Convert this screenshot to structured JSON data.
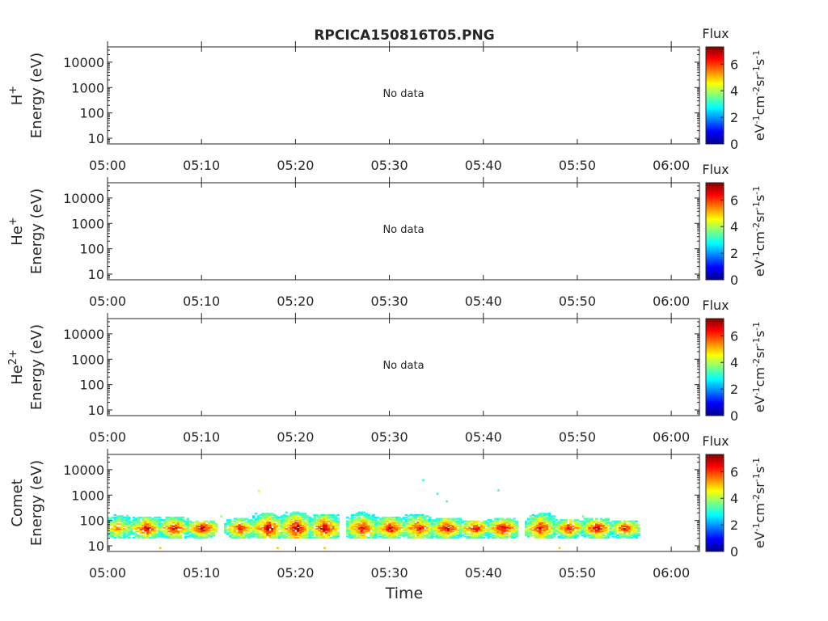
{
  "figure": {
    "title": "RPCICA150816T05.PNG",
    "xlabel": "Time"
  },
  "colorbar": {
    "label": "Flux",
    "unit_parts": [
      {
        "t": "eV",
        "sup": false
      },
      {
        "t": "-1",
        "sup": true
      },
      {
        "t": "cm",
        "sup": false
      },
      {
        "t": "-2",
        "sup": true
      },
      {
        "t": "sr",
        "sup": false
      },
      {
        "t": "-1",
        "sup": true
      },
      {
        "t": "s",
        "sup": false
      },
      {
        "t": "-1",
        "sup": true
      }
    ],
    "ticks": [
      "0",
      "2",
      "4",
      "6"
    ],
    "range": [
      0,
      7.3
    ]
  },
  "chart_data": [
    {
      "type": "heatmap",
      "species_base": "H",
      "species_sup": "+",
      "ylabel": "Energy (eV)",
      "xlim": [
        "05:00",
        "06:03"
      ],
      "xticks": [
        "05:00",
        "05:10",
        "05:20",
        "05:30",
        "05:40",
        "05:50",
        "06:00"
      ],
      "ylim": [
        6,
        40000
      ],
      "yscale": "log",
      "yticks": [
        "10",
        "100",
        "1000",
        "10000"
      ],
      "annotation": "No data",
      "cells": []
    },
    {
      "type": "heatmap",
      "species_base": "He",
      "species_sup": "+",
      "ylabel": "Energy (eV)",
      "xlim": [
        "05:00",
        "06:03"
      ],
      "xticks": [
        "05:00",
        "05:10",
        "05:20",
        "05:30",
        "05:40",
        "05:50",
        "06:00"
      ],
      "ylim": [
        6,
        40000
      ],
      "yscale": "log",
      "yticks": [
        "10",
        "100",
        "1000",
        "10000"
      ],
      "annotation": "No data",
      "cells": []
    },
    {
      "type": "heatmap",
      "species_base": "He",
      "species_sup": "2+",
      "ylabel": "Energy (eV)",
      "xlim": [
        "05:00",
        "06:03"
      ],
      "xticks": [
        "05:00",
        "05:10",
        "05:20",
        "05:30",
        "05:40",
        "05:50",
        "06:00"
      ],
      "ylim": [
        6,
        40000
      ],
      "yscale": "log",
      "yticks": [
        "10",
        "100",
        "1000",
        "10000"
      ],
      "annotation": "No data",
      "cells": []
    },
    {
      "type": "heatmap",
      "species_base": "Comet",
      "species_sup": "",
      "ylabel": "Energy (eV)",
      "xlim": [
        "05:00",
        "06:03"
      ],
      "xticks": [
        "05:00",
        "05:10",
        "05:20",
        "05:30",
        "05:40",
        "05:50",
        "06:00"
      ],
      "ylim": [
        6,
        40000
      ],
      "yscale": "log",
      "yticks": [
        "10",
        "100",
        "1000",
        "10000"
      ],
      "annotation": "",
      "bursts": [
        {
          "t": "05:01",
          "peak": 5.6,
          "high": 170
        },
        {
          "t": "05:04",
          "peak": 6.8,
          "high": 140
        },
        {
          "t": "05:07",
          "peak": 6.7,
          "high": 140
        },
        {
          "t": "05:10",
          "peak": 6.9,
          "high": 100
        },
        {
          "t": "05:14",
          "peak": 6.4,
          "high": 120
        },
        {
          "t": "05:17",
          "peak": 7.0,
          "high": 190
        },
        {
          "t": "05:20",
          "peak": 7.2,
          "high": 200
        },
        {
          "t": "05:23",
          "peak": 7.1,
          "high": 170
        },
        {
          "t": "05:27",
          "peak": 6.6,
          "high": 200
        },
        {
          "t": "05:30",
          "peak": 6.9,
          "high": 140
        },
        {
          "t": "05:33",
          "peak": 6.7,
          "high": 170
        },
        {
          "t": "05:36",
          "peak": 7.0,
          "high": 120
        },
        {
          "t": "05:39",
          "peak": 6.8,
          "high": 100
        },
        {
          "t": "05:42",
          "peak": 7.0,
          "high": 120
        },
        {
          "t": "05:46",
          "peak": 6.7,
          "high": 180
        },
        {
          "t": "05:49",
          "peak": 6.6,
          "high": 110
        },
        {
          "t": "05:52",
          "peak": 6.9,
          "high": 120
        },
        {
          "t": "05:55",
          "peak": 6.6,
          "high": 90
        }
      ],
      "isolated": [
        {
          "t": "05:16",
          "e": 1400,
          "v": 4.3
        },
        {
          "t": "05:33.5",
          "e": 3800,
          "v": 3.0
        },
        {
          "t": "05:35",
          "e": 1100,
          "v": 2.9
        },
        {
          "t": "05:36",
          "e": 550,
          "v": 3.0
        },
        {
          "t": "05:41.5",
          "e": 1500,
          "v": 3.0
        },
        {
          "t": "05:05.5",
          "e": 8,
          "v": 5.0
        },
        {
          "t": "05:18",
          "e": 8,
          "v": 5.0
        },
        {
          "t": "05:23",
          "e": 8,
          "v": 5.0
        },
        {
          "t": "05:48",
          "e": 8,
          "v": 5.0
        },
        {
          "t": "05:02",
          "e": 150,
          "v": 3.3
        },
        {
          "t": "05:12",
          "e": 140,
          "v": 3.8
        },
        {
          "t": "05:45",
          "e": 140,
          "v": 3.6
        },
        {
          "t": "05:50.5",
          "e": 140,
          "v": 3.5
        }
      ]
    }
  ]
}
